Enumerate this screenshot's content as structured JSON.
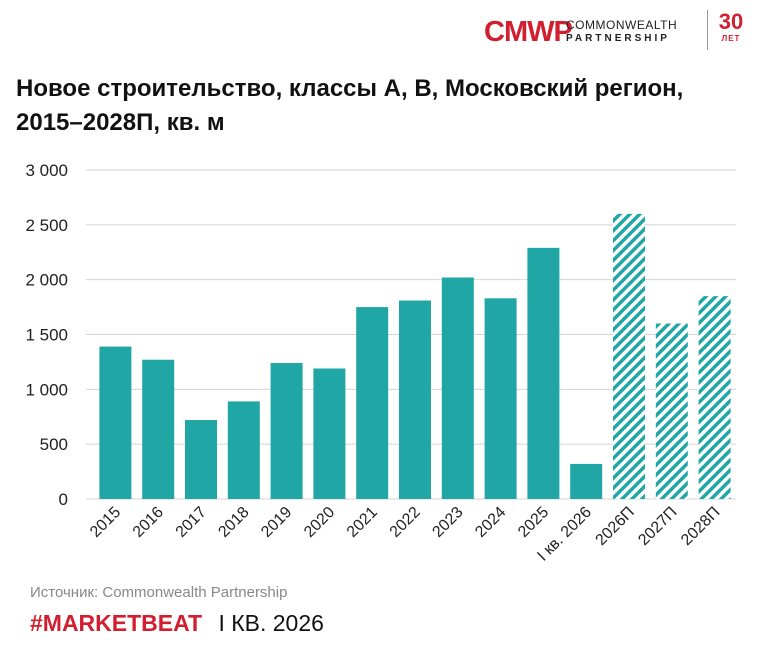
{
  "logo": {
    "mark": "CMWP",
    "line1": "COMMONWEALTH",
    "line2": "PARTNERSHIP",
    "years": "30",
    "years_label": "ЛЕТ"
  },
  "title": "Новое строительство, классы А, В, Московский регион, 2015–2028П, кв. м",
  "source": "Источник: Commonwealth Partnership",
  "footer": {
    "tag": "#MARKETBEAT",
    "quarter": "I КВ. 2026"
  },
  "colors": {
    "bar": "#21a6a6",
    "accent": "#d11f2f"
  },
  "chart_data": {
    "type": "bar",
    "categories": [
      "2015",
      "2016",
      "2017",
      "2018",
      "2019",
      "2020",
      "2021",
      "2022",
      "2023",
      "2024",
      "2025",
      "I кв. 2026",
      "2026П",
      "2027П",
      "2028П"
    ],
    "values": [
      1390,
      1270,
      720,
      890,
      1240,
      1190,
      1750,
      1810,
      2020,
      1830,
      2290,
      320,
      2600,
      1600,
      1850
    ],
    "forecast": [
      false,
      false,
      false,
      false,
      false,
      false,
      false,
      false,
      false,
      false,
      false,
      false,
      true,
      true,
      true
    ],
    "yticks": [
      0,
      500,
      1000,
      1500,
      2000,
      2500,
      3000
    ],
    "ytick_labels": [
      "0",
      "500",
      "1 000",
      "1 500",
      "2 000",
      "2 500",
      "3 000"
    ],
    "ylim": [
      0,
      3000
    ],
    "grid": true,
    "title": "Новое строительство, классы А, В, Московский регион, 2015–2028П, кв. м",
    "xlabel": "",
    "ylabel": ""
  }
}
